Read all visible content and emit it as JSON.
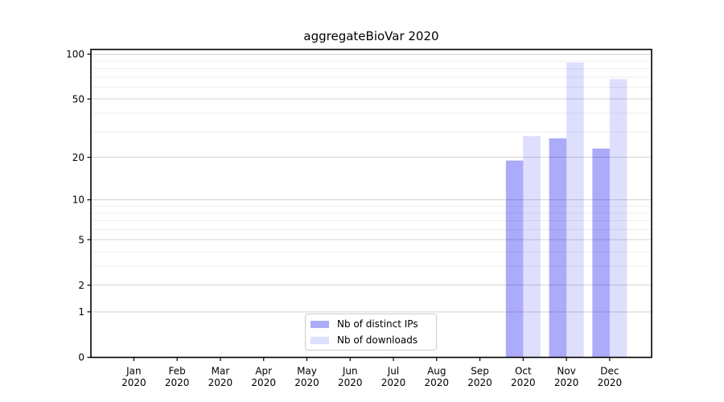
{
  "chart_data": {
    "type": "bar",
    "title": "aggregateBioVar 2020",
    "categories": [
      "Jan 2020",
      "Feb 2020",
      "Mar 2020",
      "Apr 2020",
      "May 2020",
      "Jun 2020",
      "Jul 2020",
      "Aug 2020",
      "Sep 2020",
      "Oct 2020",
      "Nov 2020",
      "Dec 2020"
    ],
    "series": [
      {
        "name": "Nb of distinct IPs",
        "color": "rgba(0,0,238,0.33)",
        "values": [
          0,
          0,
          0,
          0,
          0,
          0,
          0,
          0,
          0,
          19,
          27,
          23
        ]
      },
      {
        "name": "Nb of downloads",
        "color": "rgba(0,0,238,0.13)",
        "values": [
          0,
          0,
          0,
          0,
          0,
          0,
          0,
          0,
          0,
          28,
          88,
          68
        ]
      }
    ],
    "y_axis": {
      "scale": "log1p",
      "tick_labels": [
        0,
        1,
        2,
        5,
        10,
        20,
        50,
        100
      ],
      "minor_gridlines": [
        3,
        4,
        6,
        7,
        8,
        9,
        30,
        40,
        60,
        70,
        80,
        90
      ],
      "range": [
        0,
        107
      ]
    },
    "x_axis": {
      "tick_label_year": "2020"
    },
    "legend": {
      "location": "lower center",
      "border_color": "#cccccc",
      "background": "rgba(255,255,255,0.85)"
    },
    "grid": {
      "major_color": "#d3d3d3",
      "minor_color": "#ededed"
    }
  },
  "colors": {
    "background": "#ffffff",
    "spine": "#000000",
    "tick": "#000000",
    "text": "#000000"
  }
}
